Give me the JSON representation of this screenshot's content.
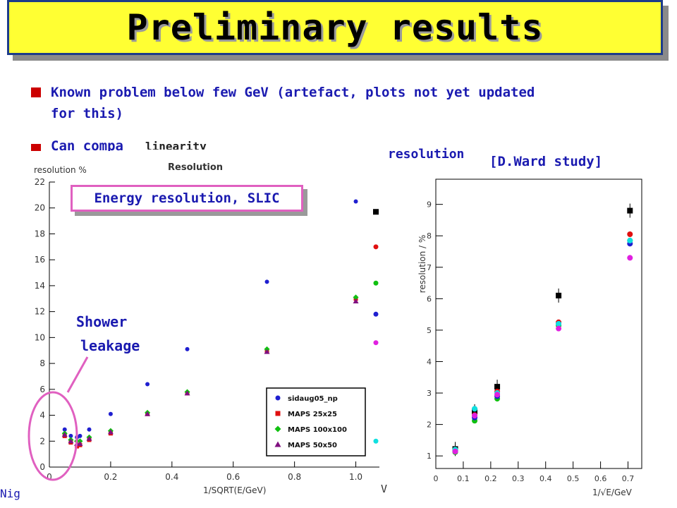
{
  "title": "Preliminary results",
  "bullets": [
    {
      "line1": "Known problem below few GeV (artefact,  plots not yet updated",
      "line2": "for this)"
    },
    {
      "line1": "Can compa"
    }
  ],
  "linearity_fragment": "linearity",
  "resolution_label": "resolution",
  "ward_label": "[D.Ward study]",
  "energy_box": "Energy resolution, SLIC",
  "shower_label_1": "Shower",
  "shower_label_2": "leakage",
  "footer_fragment": "Nig",
  "right_fragment_v": "V",
  "colors": {
    "title_bg": "#ffff33",
    "title_border": "#1d3c8a",
    "bullet": "#cc0000",
    "text": "#1a1ab0",
    "highlight": "#e060c0"
  },
  "chart_data": [
    {
      "type": "scatter",
      "title": "Resolution",
      "ylabel": "resolution %",
      "xlabel": "1/SQRT(E/GeV)",
      "xlim": [
        0,
        1.1
      ],
      "ylim": [
        0,
        22
      ],
      "xticks": [
        0,
        0.2,
        0.4,
        0.6,
        0.8,
        1.0
      ],
      "xticklabels": [
        "0",
        "0.2",
        "0.4",
        "0.6",
        "0.8",
        "1.0"
      ],
      "yticks": [
        0,
        2,
        4,
        6,
        8,
        10,
        12,
        14,
        16,
        18,
        20,
        22
      ],
      "legend_position": "bottom-right",
      "series": [
        {
          "name": "sidaug05_np",
          "color": "#1f1fd0",
          "marker": "circle",
          "x": [
            0.05,
            0.07,
            0.09,
            0.1,
            0.13,
            0.2,
            0.32,
            0.45,
            0.71,
            1.0
          ],
          "y": [
            2.9,
            2.4,
            2.3,
            2.4,
            2.9,
            4.1,
            6.4,
            9.1,
            14.3,
            20.5
          ]
        },
        {
          "name": "MAPS 25x25",
          "color": "#e01010",
          "marker": "square",
          "x": [
            0.05,
            0.07,
            0.09,
            0.1,
            0.13,
            0.2,
            0.32,
            0.45,
            0.71,
            1.0
          ],
          "y": [
            2.4,
            1.9,
            1.6,
            1.7,
            2.1,
            2.6,
            4.1,
            5.7,
            9.0,
            13.0
          ]
        },
        {
          "name": "MAPS 100x100",
          "color": "#10c010",
          "marker": "diamond",
          "x": [
            0.05,
            0.07,
            0.09,
            0.1,
            0.13,
            0.2,
            0.32,
            0.45,
            0.71,
            1.0
          ],
          "y": [
            2.6,
            2.1,
            2.0,
            2.0,
            2.3,
            2.8,
            4.2,
            5.8,
            9.1,
            13.1
          ]
        },
        {
          "name": "MAPS 50x50",
          "color": "#801080",
          "marker": "triangle",
          "x": [
            0.05,
            0.07,
            0.09,
            0.1,
            0.13,
            0.2,
            0.32,
            0.45,
            0.71,
            1.0
          ],
          "y": [
            2.5,
            2.0,
            1.8,
            1.8,
            2.2,
            2.7,
            4.1,
            5.7,
            8.9,
            12.8
          ]
        }
      ],
      "partial_column_y": [
        19.7,
        17.0,
        14.2,
        11.8,
        9.6,
        2.0
      ],
      "partial_column_colors": [
        "#000000",
        "#e01010",
        "#10c010",
        "#1f1fd0",
        "#e020e0",
        "#10e0e0"
      ]
    },
    {
      "type": "scatter",
      "title": "",
      "ylabel": "resolution / %",
      "xlabel": "1/√E/GeV",
      "xlim": [
        0,
        0.75
      ],
      "ylim": [
        0.6,
        9.8
      ],
      "xticks": [
        0,
        0.1,
        0.2,
        0.3,
        0.4,
        0.5,
        0.6,
        0.7
      ],
      "xticklabels": [
        "0",
        "0.1",
        "0.2",
        "0.3",
        "0.4",
        "0.5",
        "0.6",
        "0.7"
      ],
      "yticks": [
        1,
        2,
        3,
        4,
        5,
        6,
        7,
        8,
        9
      ],
      "x": [
        0.0707,
        0.1414,
        0.2236,
        0.4472,
        0.7071
      ],
      "series": [
        {
          "color": "#000000",
          "marker": "square",
          "y": [
            1.22,
            2.42,
            3.2,
            6.1,
            8.8
          ]
        },
        {
          "color": "#e01010",
          "marker": "circle",
          "y": [
            1.17,
            2.3,
            3.05,
            5.25,
            8.05
          ]
        },
        {
          "color": "#10c010",
          "marker": "circle",
          "y": [
            1.12,
            2.12,
            2.82,
            5.15,
            7.85
          ]
        },
        {
          "color": "#1f1fd0",
          "marker": "circle",
          "y": [
            1.15,
            2.22,
            2.9,
            5.2,
            7.75
          ]
        },
        {
          "color": "#10e0e0",
          "marker": "circle",
          "y": [
            1.2,
            2.5,
            3.0,
            5.2,
            7.85
          ]
        },
        {
          "color": "#e020e0",
          "marker": "circle",
          "y": [
            1.14,
            2.28,
            2.95,
            5.05,
            7.3
          ]
        }
      ]
    }
  ]
}
